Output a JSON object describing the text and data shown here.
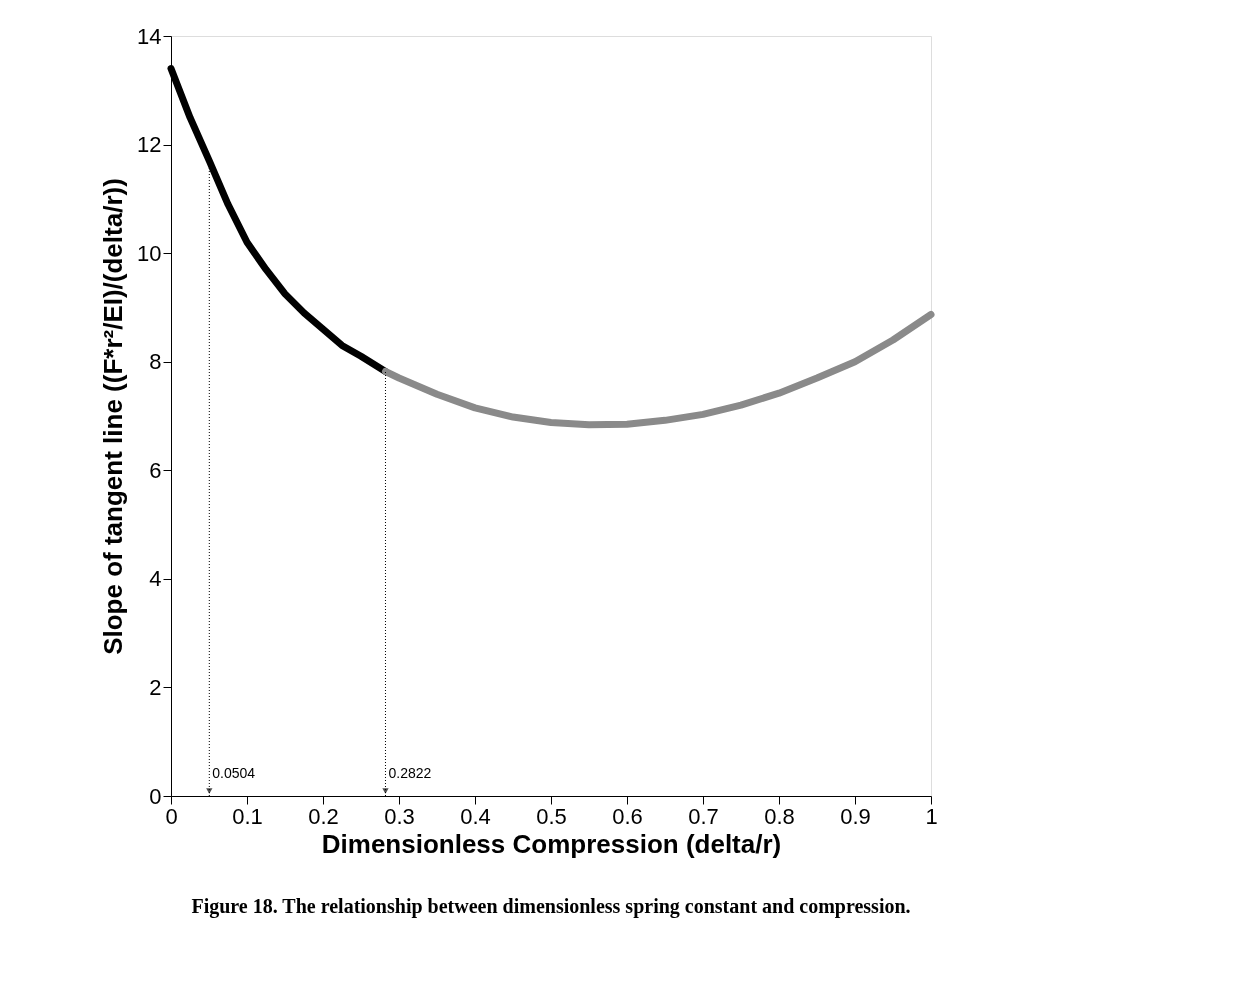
{
  "chart_data": {
    "type": "line",
    "xlabel": "Dimensionless Compression (delta/r)",
    "ylabel": "Slope of tangent line ((F*r²/EI)/(delta/r))",
    "xlim": [
      0,
      1
    ],
    "xticks": [
      0,
      0.1,
      0.2,
      0.3,
      0.4,
      0.5,
      0.6,
      0.7,
      0.8,
      0.9,
      1
    ],
    "ylim": [
      0,
      14
    ],
    "yticks": [
      0,
      2,
      4,
      6,
      8,
      10,
      12,
      14
    ],
    "grid": false,
    "marker": "none",
    "line_style": "solid",
    "series": [
      {
        "color": "#000000",
        "x": [
          0,
          0.025,
          0.0504,
          0.075,
          0.1,
          0.125,
          0.15,
          0.175,
          0.2,
          0.225,
          0.25,
          0.2822
        ],
        "values": [
          13.4,
          12.5,
          11.7,
          10.9,
          10.2,
          9.7,
          9.25,
          8.9,
          8.6,
          8.3,
          8.1,
          7.82
        ]
      },
      {
        "color": "#8a8a8a",
        "x": [
          0.2822,
          0.3,
          0.35,
          0.4,
          0.45,
          0.5,
          0.55,
          0.6,
          0.65,
          0.7,
          0.75,
          0.8,
          0.85,
          0.9,
          0.95,
          1.0
        ],
        "values": [
          7.82,
          7.7,
          7.4,
          7.15,
          6.98,
          6.88,
          6.84,
          6.85,
          6.92,
          7.03,
          7.2,
          7.42,
          7.7,
          8.0,
          8.4,
          8.87
        ]
      }
    ],
    "annotations": [
      {
        "text": "0.0504",
        "x": 0.0504,
        "y": 11.7
      },
      {
        "text": "0.2822",
        "x": 0.2822,
        "y": 7.82
      },
      "Figure 18.  The relationship between dimensionless spring constant and compression."
    ]
  }
}
